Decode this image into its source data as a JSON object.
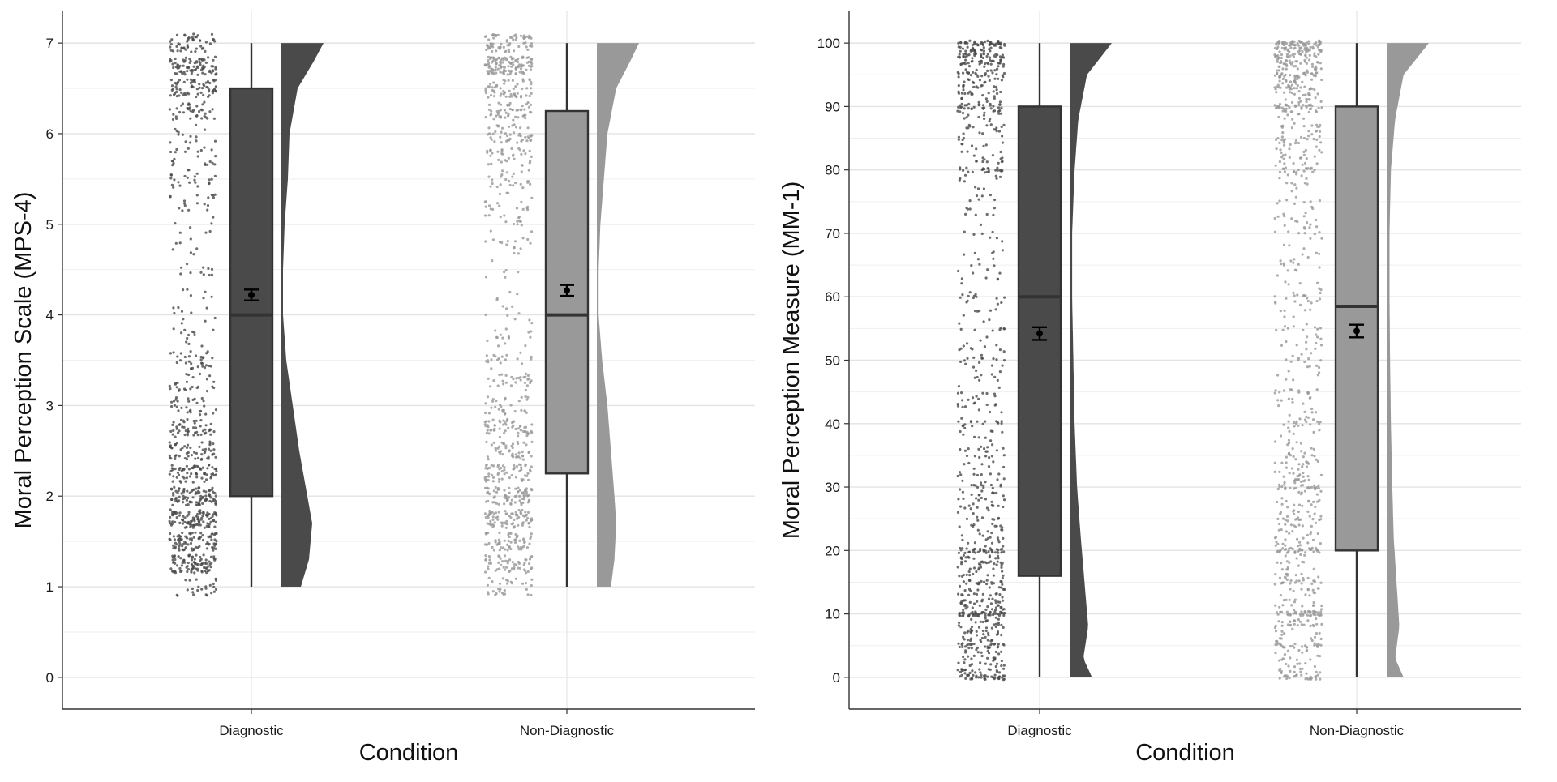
{
  "chart_data": [
    {
      "type": "raincloud",
      "xlabel": "Condition",
      "ylabel": "Moral Perception Scale (MPS-4)",
      "ylim": [
        -0.35,
        7.35
      ],
      "yticks": [
        0,
        1,
        2,
        3,
        4,
        5,
        6,
        7
      ],
      "categories": [
        "Diagnostic",
        "Non-Diagnostic"
      ],
      "grid": true,
      "legend": "none",
      "colors": {
        "Diagnostic": "#4a4a4a",
        "Non-Diagnostic": "#999999"
      },
      "box": [
        {
          "category": "Diagnostic",
          "whisker_low": 1,
          "q1": 2,
          "median": 4,
          "q3": 6.5,
          "whisker_high": 7
        },
        {
          "category": "Non-Diagnostic",
          "whisker_low": 1,
          "q1": 2.25,
          "median": 4,
          "q3": 6.25,
          "whisker_high": 7
        }
      ],
      "mean": [
        {
          "category": "Diagnostic",
          "mean": 4.22,
          "ci_low": 4.16,
          "ci_high": 4.28
        },
        {
          "category": "Non-Diagnostic",
          "mean": 4.27,
          "ci_low": 4.21,
          "ci_high": 4.33
        }
      ],
      "density": [
        {
          "category": "Diagnostic",
          "y": [
            1,
            1.3,
            1.7,
            2,
            2.5,
            3,
            3.5,
            4,
            4.5,
            5,
            5.5,
            6,
            6.5,
            6.8,
            7
          ],
          "d": [
            0.6,
            0.85,
            0.95,
            0.8,
            0.55,
            0.35,
            0.15,
            0.05,
            0.05,
            0.1,
            0.2,
            0.25,
            0.5,
            1.0,
            1.3
          ]
        },
        {
          "category": "Non-Diagnostic",
          "y": [
            1,
            1.3,
            1.7,
            2,
            2.5,
            3,
            3.5,
            4,
            4.5,
            5,
            5.5,
            6,
            6.5,
            6.8,
            7
          ],
          "d": [
            0.4,
            0.5,
            0.55,
            0.5,
            0.4,
            0.3,
            0.15,
            0.05,
            0.05,
            0.1,
            0.2,
            0.3,
            0.55,
            0.95,
            1.2
          ]
        }
      ],
      "points": {
        "scale_type": "likert",
        "range": [
          1,
          7
        ],
        "step": 0.25,
        "n_per_group": 1000
      }
    },
    {
      "type": "raincloud",
      "xlabel": "Condition",
      "ylabel": "Moral Perception Measure (MM-1)",
      "ylim": [
        -5,
        105
      ],
      "yticks": [
        0,
        10,
        20,
        30,
        40,
        50,
        60,
        70,
        80,
        90,
        100
      ],
      "categories": [
        "Diagnostic",
        "Non-Diagnostic"
      ],
      "grid": true,
      "legend": "none",
      "colors": {
        "Diagnostic": "#4a4a4a",
        "Non-Diagnostic": "#999999"
      },
      "box": [
        {
          "category": "Diagnostic",
          "whisker_low": 0,
          "q1": 16,
          "median": 60,
          "q3": 90,
          "whisker_high": 100
        },
        {
          "category": "Non-Diagnostic",
          "whisker_low": 0,
          "q1": 20,
          "median": 58.5,
          "q3": 90,
          "whisker_high": 100
        }
      ],
      "mean": [
        {
          "category": "Diagnostic",
          "mean": 54.2,
          "ci_low": 53.2,
          "ci_high": 55.2
        },
        {
          "category": "Non-Diagnostic",
          "mean": 54.6,
          "ci_low": 53.6,
          "ci_high": 55.6
        }
      ],
      "density": [
        {
          "category": "Diagnostic",
          "y": [
            0,
            3,
            8,
            15,
            22,
            30,
            40,
            50,
            60,
            70,
            80,
            88,
            95,
            100
          ],
          "d": [
            0.9,
            0.55,
            0.75,
            0.6,
            0.45,
            0.3,
            0.2,
            0.15,
            0.1,
            0.1,
            0.2,
            0.35,
            0.7,
            1.7
          ]
        },
        {
          "category": "Non-Diagnostic",
          "y": [
            0,
            3,
            8,
            15,
            22,
            30,
            40,
            50,
            60,
            70,
            80,
            88,
            95,
            100
          ],
          "d": [
            0.6,
            0.3,
            0.45,
            0.35,
            0.25,
            0.2,
            0.15,
            0.12,
            0.1,
            0.1,
            0.15,
            0.3,
            0.6,
            1.5
          ]
        }
      ],
      "points": {
        "scale_type": "continuous",
        "range": [
          0,
          100
        ],
        "step": 1,
        "n_per_group": 1000
      }
    }
  ]
}
